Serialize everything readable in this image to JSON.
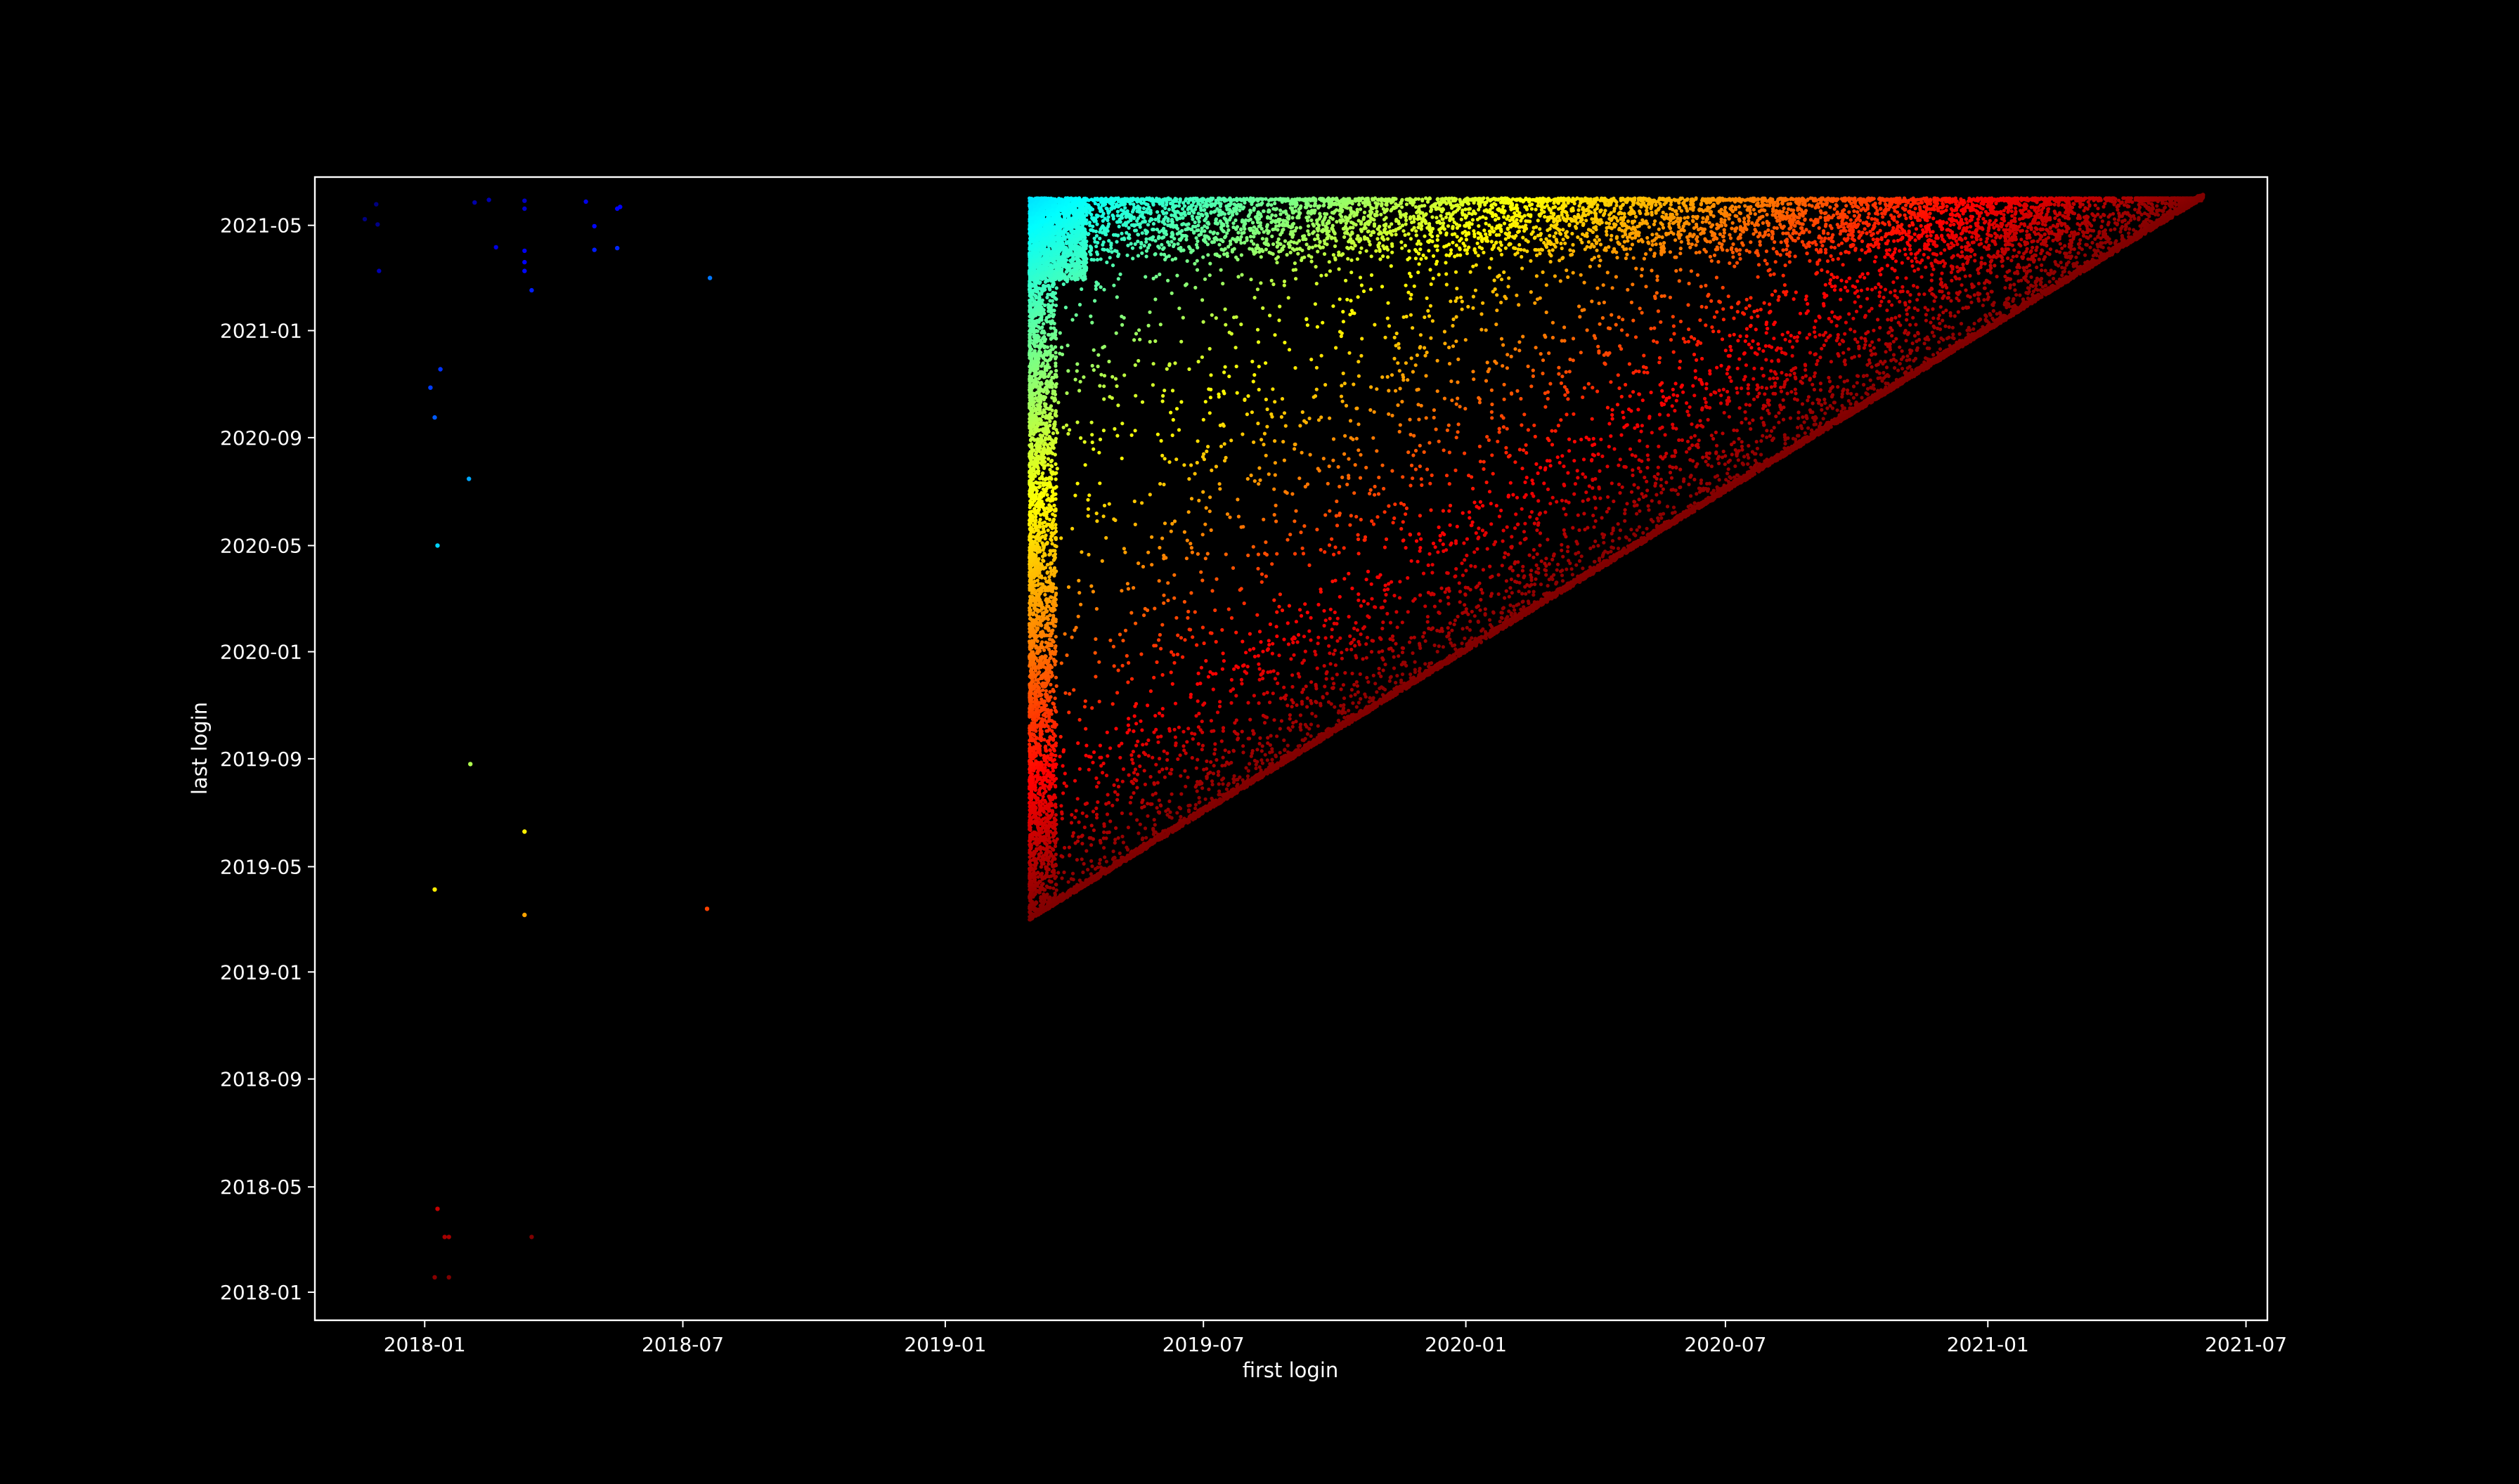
{
  "chart_data": {
    "type": "scatter",
    "title": "",
    "xlabel": "first login",
    "ylabel": "last login",
    "xlim": [
      "2017-10-16",
      "2021-07-16"
    ],
    "ylim": [
      "2017-11-30",
      "2021-06-25"
    ],
    "grid": false,
    "background": "#000000",
    "axis_color": "#ffffff",
    "colormap": "jet (color encodes lifetime: last login minus first login; long-lived = blue, short-lived = red)",
    "x_ticks": [
      "2018-01",
      "2018-07",
      "2019-01",
      "2019-07",
      "2020-01",
      "2020-07",
      "2021-01",
      "2021-07"
    ],
    "y_ticks": [
      "2018-01",
      "2018-05",
      "2018-09",
      "2019-01",
      "2019-05",
      "2019-09",
      "2020-01",
      "2020-05",
      "2020-09",
      "2021-01",
      "2021-05"
    ],
    "main_cloud": {
      "description_visible": "dense triangular cloud of thousands of points bounded by first login >= 2019-03-01, last login <= 2021-06-01 and last login >= first login",
      "first_login_range": [
        "2019-03-01",
        "2021-06-01"
      ],
      "last_login_range": [
        "2019-03-01",
        "2021-06-01"
      ],
      "dense_bands": [
        {
          "axis": "x",
          "range": [
            "2019-03-01",
            "2019-03-20"
          ]
        },
        {
          "axis": "y",
          "range": [
            "2021-03-20",
            "2021-06-01"
          ]
        }
      ]
    },
    "outliers": [
      {
        "x": "2017-11-20",
        "y": "2021-05-08"
      },
      {
        "x": "2017-11-28",
        "y": "2021-05-25"
      },
      {
        "x": "2017-11-29",
        "y": "2021-05-02"
      },
      {
        "x": "2017-11-30",
        "y": "2021-03-10"
      },
      {
        "x": "2018-02-05",
        "y": "2021-05-27"
      },
      {
        "x": "2018-02-15",
        "y": "2021-05-30"
      },
      {
        "x": "2018-02-20",
        "y": "2021-04-06"
      },
      {
        "x": "2018-03-12",
        "y": "2021-05-20"
      },
      {
        "x": "2018-03-12",
        "y": "2021-05-29"
      },
      {
        "x": "2018-03-12",
        "y": "2021-04-02"
      },
      {
        "x": "2018-03-12",
        "y": "2021-03-20"
      },
      {
        "x": "2018-03-12",
        "y": "2021-03-10"
      },
      {
        "x": "2018-03-17",
        "y": "2021-02-16"
      },
      {
        "x": "2018-04-24",
        "y": "2021-05-28"
      },
      {
        "x": "2018-04-30",
        "y": "2021-04-30"
      },
      {
        "x": "2018-04-30",
        "y": "2021-04-03"
      },
      {
        "x": "2018-05-16",
        "y": "2021-05-20"
      },
      {
        "x": "2018-05-16",
        "y": "2021-04-05"
      },
      {
        "x": "2018-05-18",
        "y": "2021-05-22"
      },
      {
        "x": "2018-07-20",
        "y": "2021-03-02"
      },
      {
        "x": "2018-01-05",
        "y": "2020-10-28"
      },
      {
        "x": "2018-01-12",
        "y": "2020-11-18"
      },
      {
        "x": "2018-01-08",
        "y": "2020-09-24"
      },
      {
        "x": "2018-02-01",
        "y": "2020-07-16"
      },
      {
        "x": "2018-01-10",
        "y": "2020-05-01"
      },
      {
        "x": "2018-02-02",
        "y": "2019-08-26"
      },
      {
        "x": "2018-03-12",
        "y": "2019-06-10"
      },
      {
        "x": "2018-01-08",
        "y": "2019-04-05"
      },
      {
        "x": "2018-03-12",
        "y": "2019-03-07"
      },
      {
        "x": "2018-07-18",
        "y": "2019-03-14"
      },
      {
        "x": "2018-01-10",
        "y": "2018-04-06"
      },
      {
        "x": "2018-01-15",
        "y": "2018-03-05"
      },
      {
        "x": "2018-01-18",
        "y": "2018-03-05"
      },
      {
        "x": "2018-03-17",
        "y": "2018-03-05"
      },
      {
        "x": "2018-01-08",
        "y": "2018-01-18"
      },
      {
        "x": "2018-01-18",
        "y": "2018-01-18"
      }
    ]
  }
}
